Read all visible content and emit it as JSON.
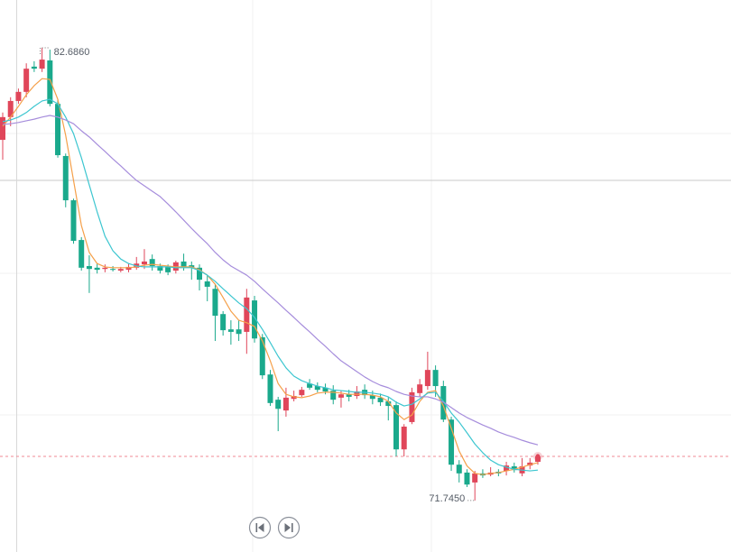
{
  "chart_data": {
    "type": "candlestick",
    "up_color": "#e0465a",
    "down_color": "#1aa98c",
    "ylim": [
      70.5,
      83.84
    ],
    "open": [
      80.46,
      81.01,
      81.4,
      81.62,
      82.23,
      82.18,
      82.38,
      81.33,
      80.07,
      79.0,
      78.04,
      77.41,
      77.37,
      77.34,
      77.34,
      77.3,
      77.32,
      77.37,
      77.45,
      77.58,
      77.41,
      77.39,
      77.3,
      77.52,
      77.43,
      77.37,
      77.04,
      76.86,
      76.25,
      75.88,
      75.88,
      75.82,
      76.58,
      75.69,
      74.79,
      74.18,
      73.92,
      74.2,
      74.29,
      74.57,
      74.51,
      74.47,
      74.4,
      74.23,
      74.31,
      74.27,
      74.42,
      74.29,
      74.23,
      74.14,
      74.05,
      72.98,
      73.64,
      74.34,
      74.51,
      74.9,
      74.51,
      73.7,
      72.61,
      72.42,
      72.18,
      72.4,
      72.37,
      72.44,
      72.46,
      72.57,
      72.4,
      72.59,
      72.68
    ],
    "high": [
      81.12,
      81.49,
      81.7,
      82.31,
      82.36,
      82.686,
      82.64,
      81.44,
      80.13,
      79.04,
      78.11,
      77.67,
      77.47,
      77.45,
      77.41,
      77.39,
      77.47,
      77.63,
      77.82,
      77.69,
      77.47,
      77.45,
      77.54,
      77.71,
      77.52,
      77.45,
      77.19,
      76.97,
      76.32,
      76.1,
      76.1,
      76.86,
      76.69,
      75.77,
      74.9,
      74.25,
      74.47,
      74.4,
      74.49,
      74.68,
      74.6,
      74.57,
      74.53,
      74.4,
      74.42,
      74.51,
      74.55,
      74.4,
      74.33,
      74.25,
      74.14,
      73.59,
      74.47,
      74.68,
      75.34,
      75.01,
      74.64,
      73.77,
      72.72,
      72.5,
      72.46,
      72.5,
      72.55,
      72.5,
      72.68,
      72.66,
      72.77,
      72.77,
      72.87
    ],
    "low": [
      79.98,
      80.79,
      81.33,
      81.49,
      82.1,
      82.1,
      81.27,
      80.03,
      78.83,
      77.95,
      77.3,
      76.76,
      77.23,
      77.26,
      77.28,
      77.26,
      77.26,
      77.32,
      77.34,
      77.3,
      77.23,
      77.19,
      77.23,
      77.3,
      77.08,
      76.82,
      76.56,
      75.6,
      75.73,
      75.51,
      75.6,
      75.29,
      75.56,
      74.68,
      74.03,
      73.42,
      73.77,
      74.14,
      74.25,
      74.42,
      74.36,
      74.31,
      74.07,
      73.99,
      74.14,
      74.2,
      74.2,
      74.07,
      74.03,
      73.68,
      72.81,
      72.81,
      73.59,
      74.25,
      74.42,
      74.25,
      73.64,
      72.46,
      72.18,
      72.07,
      71.745,
      72.29,
      72.33,
      72.33,
      72.35,
      72.42,
      72.33,
      72.5,
      72.61
    ],
    "close": [
      81.01,
      81.4,
      81.62,
      82.18,
      82.18,
      82.4,
      81.33,
      80.09,
      79.0,
      78.02,
      77.37,
      77.34,
      77.32,
      77.37,
      77.32,
      77.34,
      77.39,
      77.47,
      77.52,
      77.41,
      77.3,
      77.26,
      77.5,
      77.39,
      77.37,
      77.08,
      76.91,
      76.21,
      75.86,
      75.82,
      75.77,
      76.65,
      75.66,
      74.77,
      74.1,
      73.96,
      74.23,
      74.27,
      74.42,
      74.47,
      74.42,
      74.38,
      74.18,
      74.31,
      74.25,
      74.38,
      74.29,
      74.2,
      74.12,
      74.03,
      72.98,
      73.53,
      74.36,
      74.55,
      74.9,
      74.51,
      73.7,
      72.61,
      72.4,
      72.13,
      72.4,
      72.35,
      72.42,
      72.4,
      72.59,
      72.48,
      72.57,
      72.66,
      72.81
    ],
    "moving_averages": [
      {
        "color": "#f5a04a",
        "values": [
          80.79,
          81.01,
          81.27,
          81.55,
          81.77,
          81.94,
          81.92,
          81.44,
          80.57,
          79.48,
          78.39,
          77.74,
          77.47,
          77.39,
          77.37,
          77.37,
          77.37,
          77.39,
          77.43,
          77.45,
          77.43,
          77.41,
          77.39,
          77.39,
          77.39,
          77.32,
          77.19,
          76.97,
          76.65,
          76.32,
          76.1,
          76.04,
          75.95,
          75.6,
          75.12,
          74.57,
          74.31,
          74.25,
          74.23,
          74.27,
          74.34,
          74.36,
          74.36,
          74.34,
          74.31,
          74.31,
          74.31,
          74.29,
          74.25,
          74.14,
          73.86,
          73.7,
          73.81,
          74.14,
          74.36,
          74.4,
          74.03,
          73.49,
          72.94,
          72.58,
          72.4,
          72.37,
          72.4,
          72.42,
          72.46,
          72.5,
          72.55,
          72.61,
          72.66
        ]
      },
      {
        "color": "#3cc6d0",
        "values": [
          80.9,
          80.94,
          81.01,
          81.12,
          81.27,
          81.4,
          81.44,
          81.33,
          81.01,
          80.61,
          80.03,
          79.37,
          78.72,
          78.13,
          77.78,
          77.58,
          77.47,
          77.41,
          77.39,
          77.39,
          77.39,
          77.39,
          77.37,
          77.37,
          77.37,
          77.3,
          77.19,
          77.04,
          76.86,
          76.69,
          76.52,
          76.38,
          76.17,
          75.88,
          75.56,
          75.23,
          74.95,
          74.75,
          74.64,
          74.57,
          74.51,
          74.47,
          74.42,
          74.4,
          74.38,
          74.36,
          74.36,
          74.34,
          74.31,
          74.25,
          74.12,
          74.03,
          74.07,
          74.2,
          74.34,
          74.36,
          74.14,
          73.86,
          73.64,
          73.38,
          73.11,
          72.9,
          72.72,
          72.61,
          72.55,
          72.5,
          72.48,
          72.46,
          72.48
        ]
      },
      {
        "color": "#a68ddc",
        "values": [
          80.83,
          80.85,
          80.88,
          80.92,
          80.96,
          81.01,
          81.05,
          81.01,
          80.94,
          80.85,
          80.68,
          80.53,
          80.35,
          80.18,
          80.0,
          79.83,
          79.65,
          79.48,
          79.35,
          79.22,
          79.09,
          78.91,
          78.72,
          78.52,
          78.32,
          78.13,
          77.95,
          77.74,
          77.56,
          77.41,
          77.3,
          77.19,
          77.04,
          76.86,
          76.69,
          76.52,
          76.34,
          76.17,
          75.99,
          75.82,
          75.64,
          75.47,
          75.29,
          75.12,
          74.99,
          74.86,
          74.73,
          74.62,
          74.53,
          74.47,
          74.38,
          74.31,
          74.27,
          74.25,
          74.25,
          74.2,
          74.12,
          73.99,
          73.86,
          73.75,
          73.66,
          73.57,
          73.49,
          73.4,
          73.33,
          73.27,
          73.2,
          73.14,
          73.09
        ]
      }
    ],
    "annotations": [
      {
        "value": 82.686,
        "label": "82.6860",
        "of": "high"
      },
      {
        "value": 71.745,
        "label": "71.7450",
        "of": "low"
      }
    ]
  }
}
